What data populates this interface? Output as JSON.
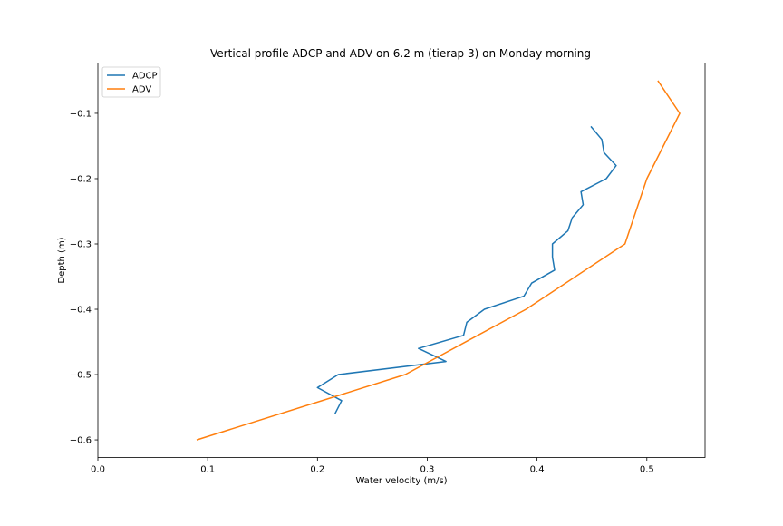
{
  "chart_data": {
    "type": "line",
    "title": "Vertical profile ADCP and ADV on 6.2 m (tierap 3) on Monday morning",
    "xlabel": "Water velocity (m/s)",
    "ylabel": "Depth (m)",
    "xlim": [
      0.0,
      0.553
    ],
    "ylim": [
      -0.627,
      -0.023
    ],
    "xticks": [
      0.0,
      0.1,
      0.2,
      0.3,
      0.4,
      0.5
    ],
    "xtick_labels": [
      "0.0",
      "0.1",
      "0.2",
      "0.3",
      "0.4",
      "0.5"
    ],
    "yticks": [
      -0.1,
      -0.2,
      -0.3,
      -0.4,
      -0.5,
      -0.6
    ],
    "ytick_labels": [
      "−0.1",
      "−0.2",
      "−0.3",
      "−0.4",
      "−0.5",
      "−0.6"
    ],
    "grid": false,
    "legend_position": "top-left",
    "series": [
      {
        "name": "ADCP",
        "color": "#1f77b4",
        "points": [
          [
            0.449,
            -0.12
          ],
          [
            0.459,
            -0.14
          ],
          [
            0.461,
            -0.16
          ],
          [
            0.472,
            -0.18
          ],
          [
            0.463,
            -0.2
          ],
          [
            0.44,
            -0.22
          ],
          [
            0.442,
            -0.24
          ],
          [
            0.432,
            -0.26
          ],
          [
            0.428,
            -0.28
          ],
          [
            0.414,
            -0.3
          ],
          [
            0.414,
            -0.32
          ],
          [
            0.416,
            -0.34
          ],
          [
            0.395,
            -0.36
          ],
          [
            0.388,
            -0.38
          ],
          [
            0.352,
            -0.4
          ],
          [
            0.336,
            -0.42
          ],
          [
            0.333,
            -0.44
          ],
          [
            0.292,
            -0.46
          ],
          [
            0.317,
            -0.48
          ],
          [
            0.219,
            -0.5
          ],
          [
            0.2,
            -0.52
          ],
          [
            0.222,
            -0.54
          ],
          [
            0.216,
            -0.56
          ]
        ]
      },
      {
        "name": "ADV",
        "color": "#ff7f0e",
        "points": [
          [
            0.51,
            -0.05
          ],
          [
            0.53,
            -0.1
          ],
          [
            0.5,
            -0.2
          ],
          [
            0.48,
            -0.3
          ],
          [
            0.39,
            -0.4
          ],
          [
            0.28,
            -0.5
          ],
          [
            0.09,
            -0.6
          ]
        ]
      }
    ]
  }
}
